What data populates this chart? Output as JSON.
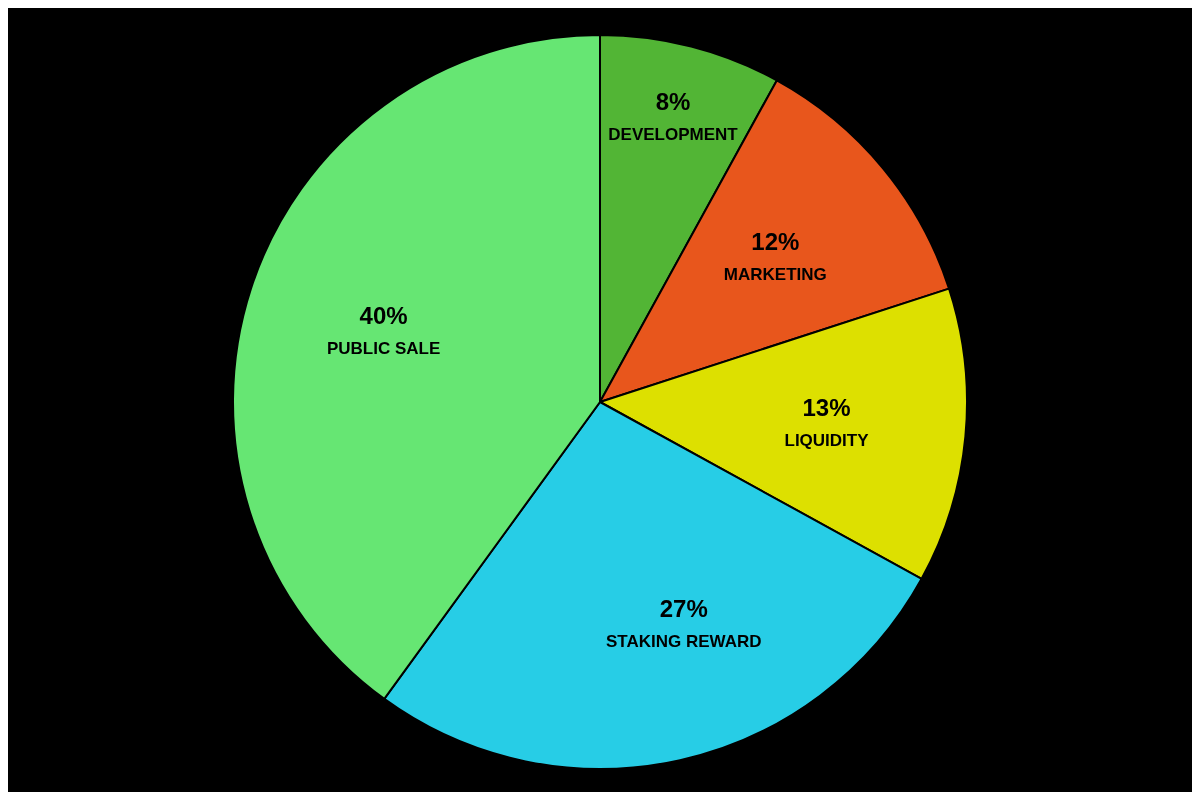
{
  "chart_data": {
    "type": "pie",
    "categories": [
      "DEVELOPMENT",
      "MARKETING",
      "LIQUIDITY",
      "STAKING REWARD",
      "PUBLIC SALE"
    ],
    "values": [
      8,
      12,
      13,
      27,
      40
    ],
    "value_labels": [
      "8%",
      "12%",
      "13%",
      "27%",
      "40%"
    ],
    "colors": [
      "#52b535",
      "#e8561c",
      "#dde000",
      "#27cde6",
      "#66e673"
    ],
    "legend": false
  }
}
